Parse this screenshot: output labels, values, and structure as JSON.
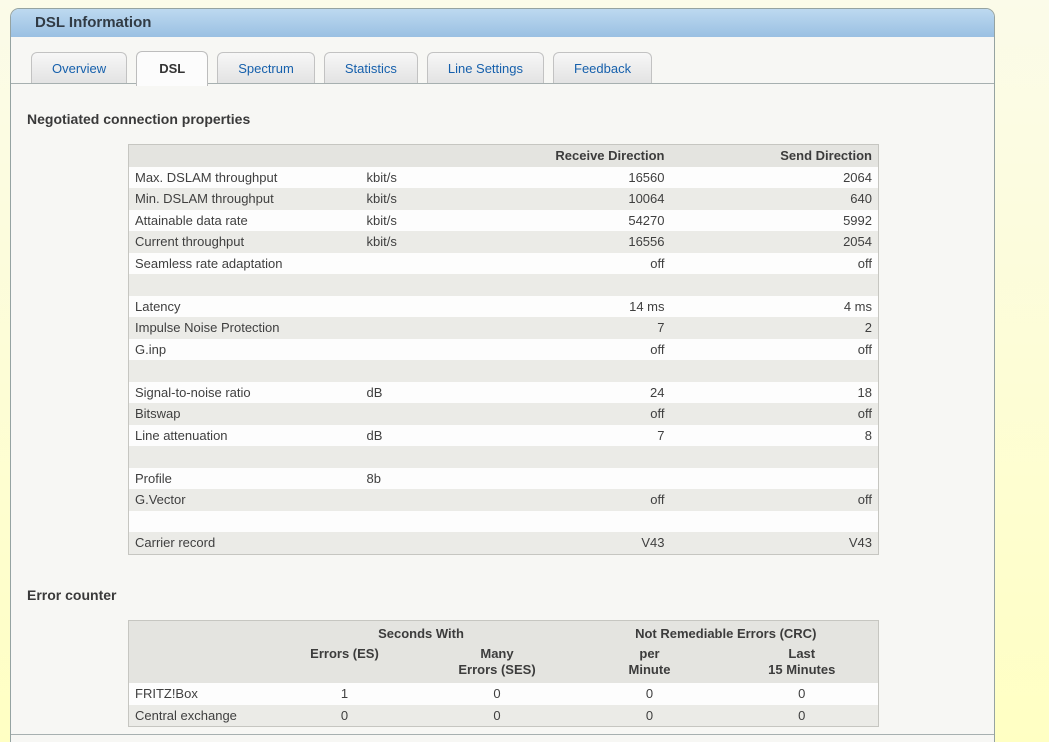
{
  "title": "DSL Information",
  "theme": {
    "titlebar_blue": "#9ac0e2",
    "page_background_yellow": "#ffffc3",
    "tab_text_blue": "#1660ac",
    "table_header_gray": "#e4e4e0",
    "row_alt_gray": "#ebebe7"
  },
  "tabs": [
    {
      "label": "Overview",
      "active": false
    },
    {
      "label": "DSL",
      "active": true
    },
    {
      "label": "Spectrum",
      "active": false
    },
    {
      "label": "Statistics",
      "active": false
    },
    {
      "label": "Line Settings",
      "active": false
    },
    {
      "label": "Feedback",
      "active": false
    }
  ],
  "sections": {
    "connection": {
      "heading": "Negotiated connection properties",
      "table": {
        "headers": {
          "receive": "Receive Direction",
          "send": "Send Direction"
        },
        "rows": [
          {
            "name": "Max. DSLAM throughput",
            "unit": "kbit/s",
            "receive": "16560",
            "send": "2064"
          },
          {
            "name": "Min. DSLAM throughput",
            "unit": "kbit/s",
            "receive": "10064",
            "send": "640"
          },
          {
            "name": "Attainable data rate",
            "unit": "kbit/s",
            "receive": "54270",
            "send": "5992"
          },
          {
            "name": "Current throughput",
            "unit": "kbit/s",
            "receive": "16556",
            "send": "2054"
          },
          {
            "name": "Seamless rate adaptation",
            "unit": "",
            "receive": "off",
            "send": "off"
          },
          {
            "name": "",
            "unit": "",
            "receive": "",
            "send": ""
          },
          {
            "name": "Latency",
            "unit": "",
            "receive": "14 ms",
            "send": "4 ms"
          },
          {
            "name": "Impulse Noise Protection",
            "unit": "",
            "receive": "7",
            "send": "2"
          },
          {
            "name": "G.inp",
            "unit": "",
            "receive": "off",
            "send": "off"
          },
          {
            "name": "",
            "unit": "",
            "receive": "",
            "send": ""
          },
          {
            "name": "Signal-to-noise ratio",
            "unit": "dB",
            "receive": "24",
            "send": "18"
          },
          {
            "name": "Bitswap",
            "unit": "",
            "receive": "off",
            "send": "off"
          },
          {
            "name": "Line attenuation",
            "unit": "dB",
            "receive": "7",
            "send": "8"
          },
          {
            "name": "",
            "unit": "",
            "receive": "",
            "send": ""
          },
          {
            "name": "Profile",
            "unit": "8b",
            "receive": "",
            "send": ""
          },
          {
            "name": "G.Vector",
            "unit": "",
            "receive": "off",
            "send": "off"
          },
          {
            "name": "",
            "unit": "",
            "receive": "",
            "send": ""
          },
          {
            "name": "Carrier record",
            "unit": "",
            "receive": "V43",
            "send": "V43"
          }
        ]
      }
    },
    "errors": {
      "heading": "Error counter",
      "table": {
        "group_headers": {
          "seconds": "Seconds With",
          "crc": "Not Remediable Errors (CRC)"
        },
        "col_headers": [
          {
            "line1": "Errors (ES)",
            "line2": ""
          },
          {
            "line1": "Many",
            "line2": "Errors (SES)"
          },
          {
            "line1": "per",
            "line2": "Minute"
          },
          {
            "line1": "Last",
            "line2": "15 Minutes"
          }
        ],
        "rows": [
          {
            "name": "FRITZ!Box",
            "es": "1",
            "ses": "0",
            "per_minute": "0",
            "last15": "0"
          },
          {
            "name": "Central exchange",
            "es": "0",
            "ses": "0",
            "per_minute": "0",
            "last15": "0"
          }
        ]
      }
    }
  }
}
